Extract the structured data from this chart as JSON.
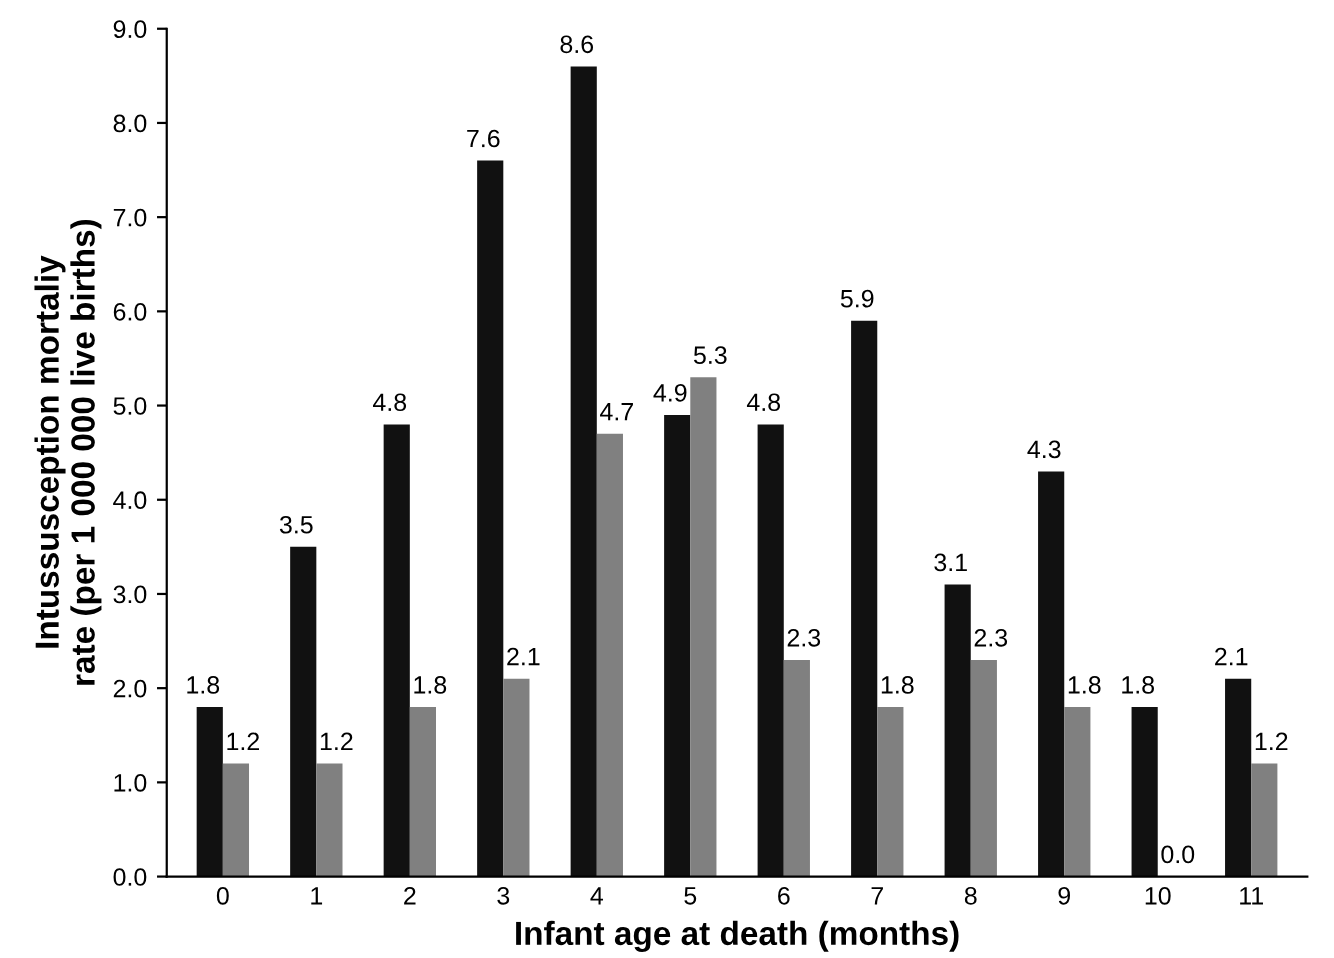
{
  "chart_data": {
    "type": "bar",
    "xlabel": "Infant age at death (months)",
    "ylabel": "Intussusception mortaliy\nrate (per 1 000 000 live births)",
    "categories": [
      "0",
      "1",
      "2",
      "3",
      "4",
      "5",
      "6",
      "7",
      "8",
      "9",
      "10",
      "11"
    ],
    "series": [
      {
        "color": "#111111",
        "values": [
          1.8,
          3.5,
          4.8,
          7.6,
          8.6,
          4.9,
          4.8,
          5.9,
          3.1,
          4.3,
          1.8,
          2.1
        ],
        "value_labels": [
          "1.8",
          "3.5",
          "4.8",
          "7.6",
          "8.6",
          "4.9",
          "4.8",
          "5.9",
          "3.1",
          "4.3",
          "1.8",
          "2.1"
        ]
      },
      {
        "color": "#808080",
        "values": [
          1.2,
          1.2,
          1.8,
          2.1,
          4.7,
          5.3,
          2.3,
          1.8,
          2.3,
          1.8,
          0.0,
          1.2
        ],
        "value_labels": [
          "1.2",
          "1.2",
          "1.8",
          "2.1",
          "4.7",
          "5.3",
          "2.3",
          "1.8",
          "2.3",
          "1.8",
          "0.0",
          "1.2"
        ]
      }
    ],
    "ylim": [
      0,
      9
    ],
    "yticks": [
      {
        "value": 0,
        "label": "0.0"
      },
      {
        "value": 1,
        "label": "1.0"
      },
      {
        "value": 2,
        "label": "2.0"
      },
      {
        "value": 3,
        "label": "3.0"
      },
      {
        "value": 4,
        "label": "4.0"
      },
      {
        "value": 5,
        "label": "5.0"
      },
      {
        "value": 6,
        "label": "6.0"
      },
      {
        "value": 7,
        "label": "7.0"
      },
      {
        "value": 8,
        "label": "8.0"
      },
      {
        "value": 9,
        "label": "9.0"
      }
    ],
    "grid": false
  }
}
